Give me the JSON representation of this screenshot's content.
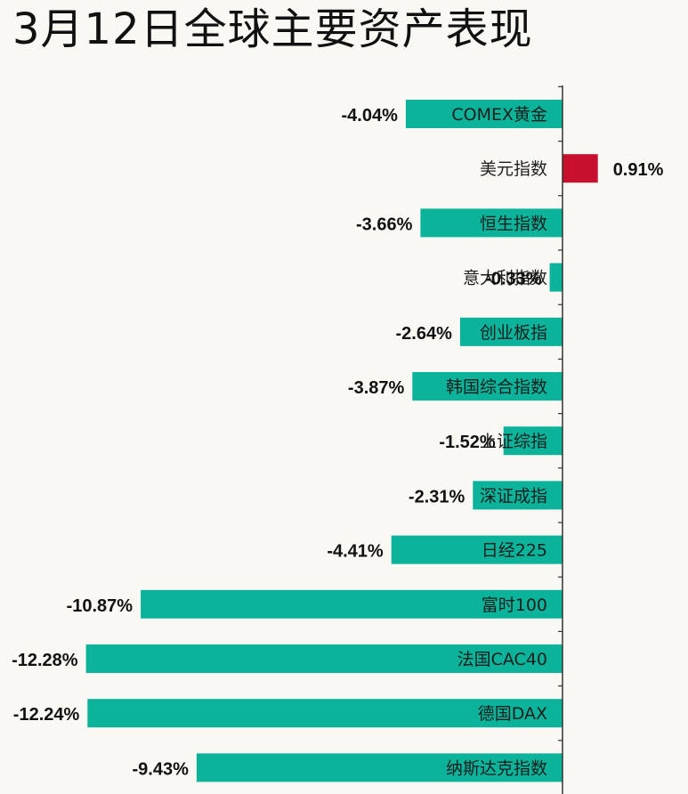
{
  "title": "3月12日全球主要资产表现",
  "colors": {
    "negative": "#0bb39a",
    "positive": "#c8102e",
    "axis": "#333333",
    "background": "#faf8f3"
  },
  "chart_data": {
    "type": "bar",
    "orientation": "horizontal",
    "title": "3月12日全球主要资产表现",
    "xlabel": "",
    "ylabel": "",
    "grid": false,
    "legend": "none",
    "categories": [
      "COMEX黄金",
      "美元指数",
      "恒生指数",
      "意大利指数",
      "创业板指",
      "韩国综合指数",
      "上证综指",
      "深证成指",
      "日经225",
      "富时100",
      "法国CAC40",
      "德国DAX",
      "纳斯达克指数"
    ],
    "values": [
      -4.04,
      0.91,
      -3.66,
      -0.33,
      -2.64,
      -3.87,
      -1.52,
      -2.31,
      -4.41,
      -10.87,
      -12.28,
      -12.24,
      -9.43
    ],
    "value_labels": [
      "-4.04%",
      "0.91%",
      "-3.66%",
      "-0.33%",
      "-2.64%",
      "-3.87%",
      "-1.52%",
      "-2.31%",
      "-4.41%",
      "-10.87%",
      "-12.28%",
      "-12.24%",
      "-9.43%"
    ],
    "unit": "%"
  }
}
